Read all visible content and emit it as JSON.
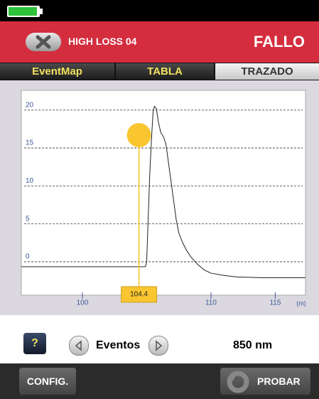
{
  "header": {
    "title": "HIGH LOSS 04",
    "status": "FALLO"
  },
  "tabs": [
    "EventMap",
    "TABLA",
    "TRAZADO"
  ],
  "chart_data": {
    "type": "line",
    "color": "#222222",
    "x": [
      95.25,
      100,
      104.9,
      105.0,
      105.1,
      105.25,
      105.4,
      105.5,
      105.6,
      105.75,
      105.9,
      106.1,
      106.3,
      106.5,
      106.7,
      106.9,
      107.1,
      107.3,
      107.5,
      107.8,
      108.1,
      108.5,
      109,
      109.5,
      110,
      111,
      112,
      114,
      117.35
    ],
    "values": [
      -0.65,
      -0.65,
      -0.65,
      0,
      5,
      12,
      17,
      19.8,
      20.5,
      20.2,
      18.5,
      17,
      16.5,
      15.5,
      13,
      10.5,
      8,
      5.5,
      3.8,
      2.5,
      1.5,
      0.5,
      -0.4,
      -1.1,
      -1.5,
      -1.8,
      -2.0,
      -2.1,
      -2.1
    ],
    "xlim": [
      95.25,
      117.35
    ],
    "ylim": [
      -4.4,
      22.6
    ],
    "xticks": [
      100,
      110,
      115
    ],
    "yticks": [
      0,
      5,
      10,
      15,
      20
    ],
    "x_label": "(m)",
    "grid": true,
    "cursor": 104.4
  },
  "footer": {
    "help": "?",
    "events": "Eventos",
    "wavelength": "850 nm"
  },
  "buttons": {
    "config": "CONFIG.",
    "test": "PROBAR"
  }
}
